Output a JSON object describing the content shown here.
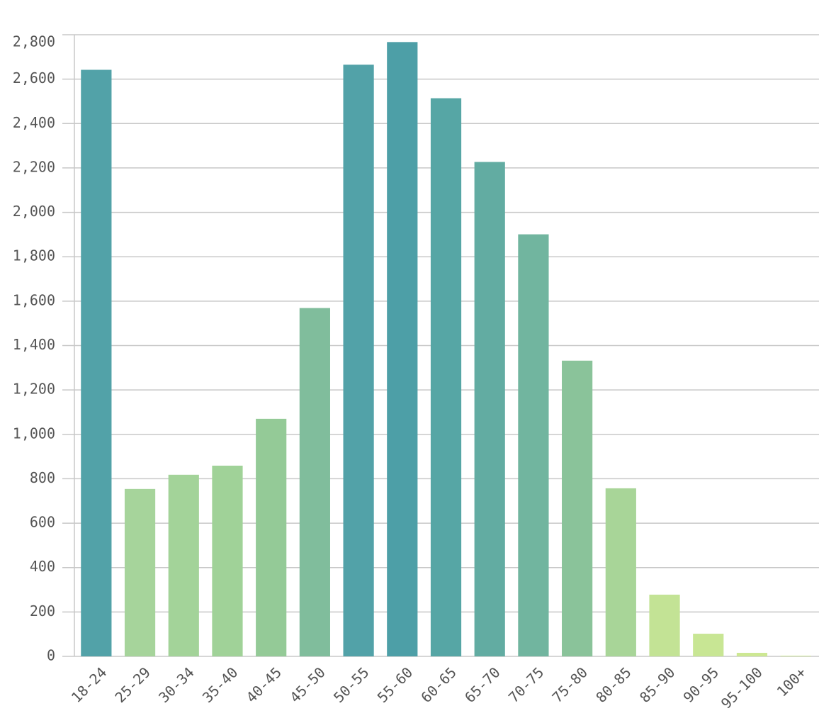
{
  "chart_data": {
    "type": "bar",
    "categories": [
      "18-24",
      "25-29",
      "30-34",
      "35-40",
      "40-45",
      "45-50",
      "50-55",
      "55-60",
      "60-65",
      "65-70",
      "70-75",
      "75-80",
      "80-85",
      "85-90",
      "90-95",
      "95-100",
      "100+"
    ],
    "values": [
      2642,
      754,
      818,
      859,
      1070,
      1569,
      2665,
      2767,
      2514,
      2227,
      1901,
      1332,
      757,
      278,
      102,
      16,
      3
    ],
    "colors": [
      "#52a2a8",
      "#a6d49b",
      "#a3d399",
      "#a0d298",
      "#94ca97",
      "#80bd9c",
      "#52a2a8",
      "#4d9fa7",
      "#56a6a5",
      "#62aca2",
      "#71b59f",
      "#8ac39a",
      "#a8d598",
      "#c3e395",
      "#c8e694",
      "#cde893",
      "#d0ea93"
    ],
    "ylim": [
      0,
      2800
    ],
    "yticks": [
      0,
      200,
      400,
      600,
      800,
      {
        "value": 1000,
        "label": "1,000"
      },
      {
        "value": 1200,
        "label": "1,200"
      },
      {
        "value": 1400,
        "label": "1,400"
      },
      {
        "value": 1600,
        "label": "1,600"
      },
      {
        "value": 1800,
        "label": "1,800"
      },
      {
        "value": 2000,
        "label": "2,000"
      },
      {
        "value": 2200,
        "label": "2,200"
      },
      {
        "value": 2400,
        "label": "2,400"
      },
      {
        "value": 2600,
        "label": "2,600"
      },
      {
        "value": 2800,
        "label": "2,800"
      }
    ],
    "grid": true
  }
}
